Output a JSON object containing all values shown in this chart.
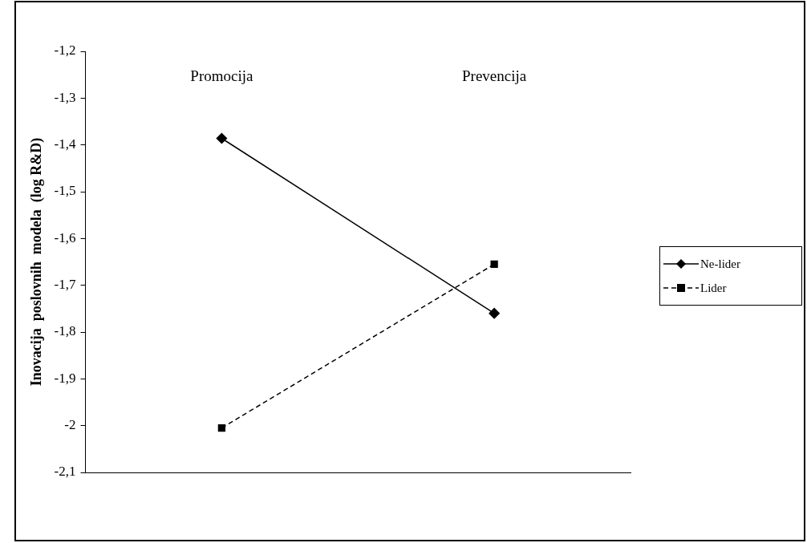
{
  "chart_data": {
    "type": "line",
    "ylabel": "Inovacija  poslovnih  modela  (log R&D)",
    "categories": [
      "Promocija",
      "Prevencija"
    ],
    "series": [
      {
        "name": "Ne-lider",
        "color": "#000000",
        "values": [
          -1.386,
          -1.76
        ],
        "marker": "diamond",
        "line_style": "solid"
      },
      {
        "name": "Lider",
        "color": "#000000",
        "values": [
          -2.005,
          -1.655
        ],
        "marker": "square",
        "line_style": "dashed"
      }
    ],
    "ylim": [
      -2.1,
      -1.2
    ],
    "yticks": [
      {
        "value": -2.1,
        "label": "-2,1"
      },
      {
        "value": -2,
        "label": "-2"
      },
      {
        "value": -1.9,
        "label": "-1,9"
      },
      {
        "value": -1.8,
        "label": "-1,8"
      },
      {
        "value": -1.7,
        "label": "-1,7"
      },
      {
        "value": -1.6,
        "label": "-1,6"
      },
      {
        "value": -1.5,
        "label": "-1,5"
      },
      {
        "value": -1.4,
        "label": "-1,4"
      },
      {
        "value": -1.3,
        "label": "-1,3"
      },
      {
        "value": -1.2,
        "label": "-1,2"
      }
    ],
    "grid": false,
    "legend": "right"
  }
}
